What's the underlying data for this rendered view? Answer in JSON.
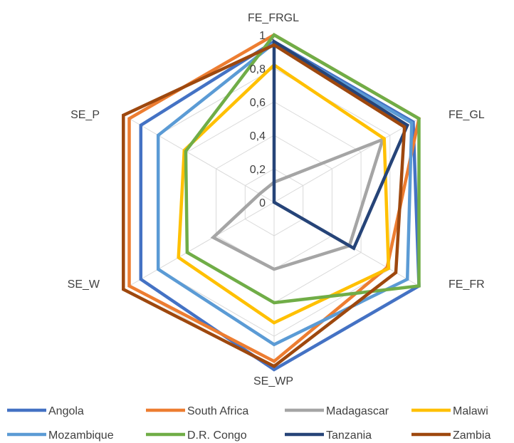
{
  "chart_data": {
    "type": "radar",
    "title": "",
    "axes": [
      "FE_FRGL",
      "FE_GL",
      "FE_FR",
      "SE_WP",
      "SE_W",
      "SE_P"
    ],
    "ticks": [
      "0",
      "0,2",
      "0,4",
      "0,6",
      "0,8",
      "1"
    ],
    "rlim": [
      0,
      1
    ],
    "grid": true,
    "legend_position": "bottom",
    "series": [
      {
        "name": "Angola",
        "color": "#4472C4",
        "values": [
          0.96,
          0.96,
          1.0,
          1.0,
          0.92,
          0.92
        ]
      },
      {
        "name": "South Africa",
        "color": "#ED7D31",
        "values": [
          1.0,
          1.0,
          0.78,
          0.95,
          1.0,
          1.0
        ]
      },
      {
        "name": "Madagascar",
        "color": "#A5A5A5",
        "values": [
          0.12,
          0.75,
          0.52,
          0.4,
          0.42,
          0.1
        ]
      },
      {
        "name": "Malawi",
        "color": "#FFC000",
        "values": [
          0.82,
          0.76,
          0.79,
          0.72,
          0.66,
          0.62
        ]
      },
      {
        "name": "Mozambique",
        "color": "#5B9BD5",
        "values": [
          0.95,
          0.95,
          0.92,
          0.85,
          0.8,
          0.8
        ]
      },
      {
        "name": "D.R. Congo",
        "color": "#70AD47",
        "values": [
          1.0,
          1.0,
          1.0,
          0.6,
          0.6,
          0.61
        ]
      },
      {
        "name": "Tanzania",
        "color": "#264478",
        "values": [
          0.96,
          0.92,
          0.55,
          0.0,
          0.0,
          0.0
        ]
      },
      {
        "name": "Zambia",
        "color": "#9E480E",
        "values": [
          0.94,
          0.9,
          0.84,
          0.98,
          1.04,
          1.04
        ]
      }
    ]
  }
}
